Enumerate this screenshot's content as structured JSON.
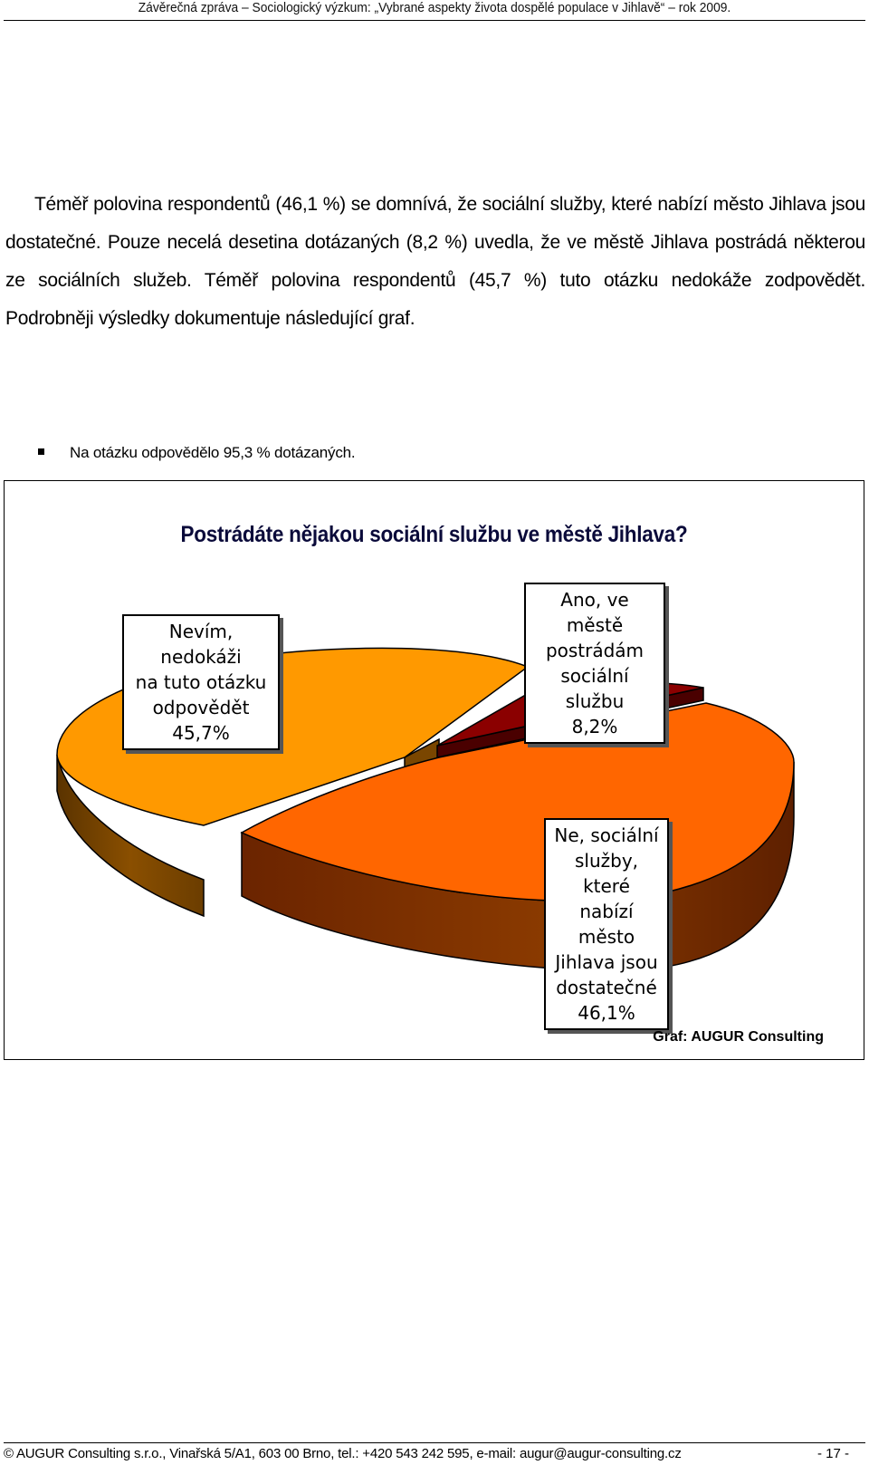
{
  "header": {
    "title": "Závěrečná zpráva – Sociologický výzkum: „Vybrané aspekty života dospělé populace v Jihlavě“ – rok 2009."
  },
  "paragraph": "Téměř polovina respondentů (46,1 %) se domnívá, že sociální služby, které nabízí město Jihlava jsou dostatečné. Pouze necelá desetina dotázaných (8,2 %) uvedla, že ve městě Jihlava postrádá některou ze sociálních služeb. Téměř polovina respondentů (45,7 %) tuto otázku nedokáže zodpovědět. Podrobněji výsledky dokumentuje následující graf.",
  "bullet": "Na otázku odpovědělo 95,3 % dotázaných.",
  "chart_data": {
    "type": "pie",
    "title": "Postrádáte nějakou sociální službu ve městě Jihlava?",
    "slices": [
      {
        "label_lines": [
          "Nevím, nedokáži",
          "na tuto otázku",
          "odpovědět",
          "45,7%"
        ],
        "value": 45.7,
        "color": "#ff9900"
      },
      {
        "label_lines": [
          "Ano, ve městě",
          "postrádám",
          "sociální službu",
          "8,2%"
        ],
        "value": 8.2,
        "color": "#8b0000"
      },
      {
        "label_lines": [
          "Ne, sociální",
          "služby, které",
          "nabízí město",
          "Jihlava jsou",
          "dostatečné",
          "46,1%"
        ],
        "value": 46.1,
        "color": "#ff6600"
      }
    ],
    "credit": "Graf: AUGUR Consulting"
  },
  "footer": {
    "text": "© AUGUR Consulting s.r.o., Vinařská 5/A1, 603 00 Brno, tel.: +420 543 242 595, e-mail: augur@augur-consulting.cz",
    "page": "- 17 -"
  }
}
